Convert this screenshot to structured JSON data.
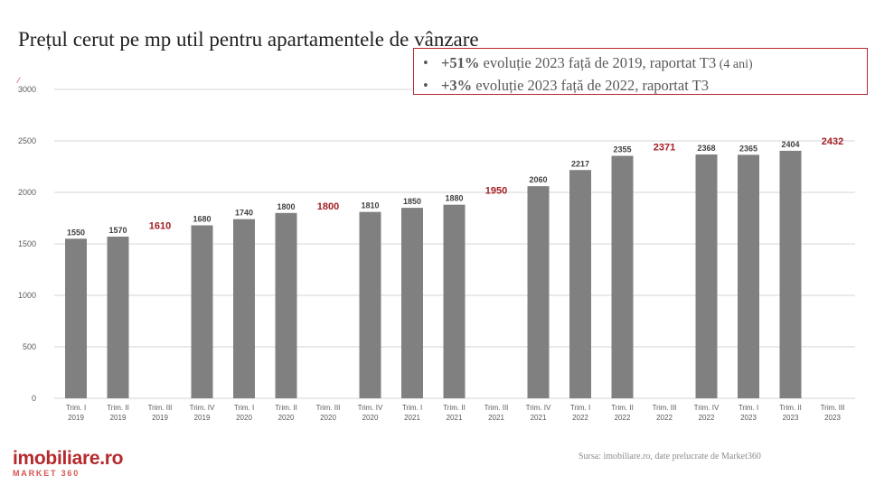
{
  "title": "Prețul cerut pe mp util pentru apartamentele de vânzare",
  "callout": {
    "line1": {
      "bold": "+51%",
      "text": " evoluție 2023 față de 2019, raportat T3",
      "small": " (4 ani)"
    },
    "line2": {
      "bold": "+3%",
      "text": " evoluție 2023 față de 2022, raportat T3"
    }
  },
  "chart_data": {
    "type": "bar",
    "ylim": [
      0,
      3000
    ],
    "yticks": [
      0,
      500,
      1000,
      1500,
      2000,
      2500,
      3000
    ],
    "grid": true,
    "categories": [
      [
        "Trim. I",
        "2019"
      ],
      [
        "Trim. II",
        "2019"
      ],
      [
        "Trim. III",
        "2019"
      ],
      [
        "Trim. IV",
        "2019"
      ],
      [
        "Trim. I",
        "2020"
      ],
      [
        "Trim. II",
        "2020"
      ],
      [
        "Trim. III",
        "2020"
      ],
      [
        "Trim. IV",
        "2020"
      ],
      [
        "Trim. I",
        "2021"
      ],
      [
        "Trim. II",
        "2021"
      ],
      [
        "Trim. III",
        "2021"
      ],
      [
        "Trim. IV",
        "2021"
      ],
      [
        "Trim. I",
        "2022"
      ],
      [
        "Trim. II",
        "2022"
      ],
      [
        "Trim. III",
        "2022"
      ],
      [
        "Trim. IV",
        "2022"
      ],
      [
        "Trim. I",
        "2023"
      ],
      [
        "Trim. II",
        "2023"
      ],
      [
        "Trim. III",
        "2023"
      ]
    ],
    "values": [
      1550,
      1570,
      1610,
      1680,
      1740,
      1800,
      1800,
      1810,
      1850,
      1880,
      1950,
      2060,
      2217,
      2355,
      2371,
      2368,
      2365,
      2404,
      2432
    ],
    "bar_shown": [
      true,
      true,
      false,
      true,
      true,
      true,
      false,
      true,
      true,
      true,
      false,
      true,
      true,
      true,
      false,
      true,
      true,
      true,
      false
    ],
    "bar_color": "#808080",
    "highlight_color": "#a31f24"
  },
  "source": "Sursa: imobiliare.ro, date prelucrate de Market360",
  "logo": {
    "main": "imobiliare.ro",
    "sub": "MARKET 360"
  }
}
